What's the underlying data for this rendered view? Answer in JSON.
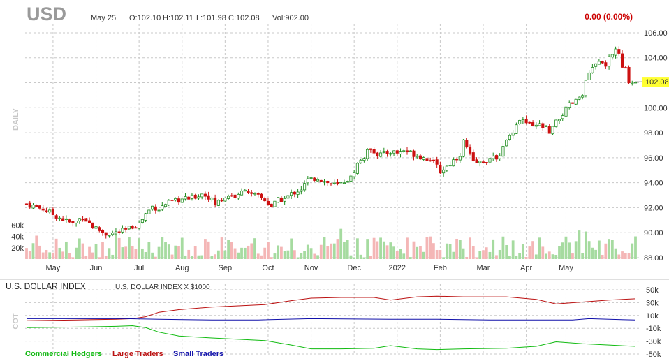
{
  "header": {
    "symbol": "USD",
    "date": "May 25",
    "open": "O:102.10",
    "high": "H:102.11",
    "low": "L:101.98",
    "close": "C:102.08",
    "volume": "Vol:902.00",
    "change": "0.00 (0.00%)",
    "last_price_label": "102.08",
    "timeframe_label": "DAILY"
  },
  "colors": {
    "up": "#1e8c1e",
    "down": "#cc1111",
    "vol_up": "#a6dba0",
    "vol_down": "#f4b6b6",
    "grid": "#c8c8c8",
    "price_highlight": "#ffff33",
    "change_text": "#cc0000",
    "commercial": "#11bb11",
    "large": "#bb1111",
    "small": "#1111aa"
  },
  "chart_data": [
    {
      "type": "candlestick",
      "title": "USD",
      "ylim": [
        88,
        106.5
      ],
      "y_ticks": [
        "106.00",
        "104.00",
        "102.00",
        "100.00",
        "98.00",
        "96.00",
        "94.00",
        "92.00",
        "90.00",
        "88.00"
      ],
      "x_tick_labels": [
        "May",
        "Jun",
        "Jul",
        "Aug",
        "Sep",
        "Oct",
        "Nov",
        "Dec",
        "2022",
        "Feb",
        "Mar",
        "Apr",
        "May"
      ],
      "volume_ticks": [
        "60k",
        "40k",
        "20k"
      ],
      "last_price": 102.08,
      "close_path": [
        [
          0,
          92.3
        ],
        [
          5,
          91.9
        ],
        [
          10,
          91.2
        ],
        [
          14,
          90.7
        ],
        [
          17,
          91.3
        ],
        [
          20,
          90.5
        ],
        [
          24,
          89.9
        ],
        [
          27,
          90.0
        ],
        [
          30,
          90.2
        ],
        [
          32,
          90.5
        ],
        [
          34,
          90.7
        ],
        [
          36,
          91.5
        ],
        [
          38,
          92.1
        ],
        [
          40,
          91.9
        ],
        [
          42,
          92.3
        ],
        [
          46,
          92.6
        ],
        [
          50,
          92.8
        ],
        [
          53,
          93.1
        ],
        [
          55,
          92.9
        ],
        [
          57,
          92.3
        ],
        [
          59,
          92.7
        ],
        [
          61,
          93.0
        ],
        [
          64,
          92.9
        ],
        [
          66,
          93.6
        ],
        [
          68,
          93.0
        ],
        [
          70,
          92.9
        ],
        [
          72,
          92.6
        ],
        [
          74,
          92.1
        ],
        [
          76,
          92.6
        ],
        [
          78,
          92.7
        ],
        [
          80,
          93.1
        ],
        [
          83,
          93.5
        ],
        [
          85,
          94.2
        ],
        [
          88,
          94.4
        ],
        [
          90,
          94.1
        ],
        [
          92,
          93.9
        ],
        [
          94,
          93.8
        ],
        [
          96,
          94.1
        ],
        [
          98,
          94.4
        ],
        [
          100,
          95.5
        ],
        [
          102,
          96.1
        ],
        [
          104,
          96.8
        ],
        [
          106,
          96.3
        ],
        [
          108,
          96.3
        ],
        [
          110,
          96.5
        ],
        [
          112,
          96.4
        ],
        [
          114,
          96.6
        ],
        [
          116,
          96.4
        ],
        [
          118,
          96.2
        ],
        [
          120,
          96.0
        ],
        [
          122,
          95.9
        ],
        [
          124,
          95.3
        ],
        [
          125,
          94.9
        ],
        [
          127,
          95.3
        ],
        [
          129,
          95.8
        ],
        [
          131,
          96.3
        ],
        [
          132,
          97.3
        ],
        [
          133,
          96.8
        ],
        [
          135,
          95.6
        ],
        [
          137,
          95.6
        ],
        [
          139,
          95.8
        ],
        [
          141,
          95.9
        ],
        [
          143,
          96.3
        ],
        [
          145,
          97.3
        ],
        [
          147,
          98.2
        ],
        [
          149,
          99.1
        ],
        [
          151,
          98.8
        ],
        [
          153,
          98.4
        ],
        [
          155,
          98.6
        ],
        [
          157,
          98.3
        ],
        [
          158,
          97.9
        ],
        [
          160,
          98.8
        ],
        [
          162,
          99.5
        ],
        [
          164,
          100.2
        ],
        [
          166,
          100.5
        ],
        [
          168,
          101.2
        ],
        [
          170,
          102.8
        ],
        [
          172,
          103.4
        ],
        [
          174,
          103.8
        ],
        [
          175,
          103.1
        ],
        [
          176,
          103.9
        ],
        [
          177,
          104.2
        ],
        [
          178,
          104.8
        ],
        [
          179,
          104.2
        ],
        [
          180,
          103.2
        ],
        [
          181,
          103.0
        ],
        [
          182,
          102.2
        ],
        [
          183,
          102.0
        ],
        [
          184,
          102.1
        ]
      ],
      "volume_range": [
        3000,
        68000
      ]
    },
    {
      "type": "line",
      "title": "U.S. DOLLAR INDEX",
      "subtitle": "U.S. DOLLAR INDEX X $1000",
      "ylabel": "COT",
      "ylim": [
        -50,
        50
      ],
      "y_ticks": [
        "50k",
        "30k",
        "10k",
        "-10k",
        "-30k",
        "-50k"
      ],
      "series": [
        {
          "name": "Commercial Hedgers",
          "color": "#11bb11",
          "points": [
            [
              0,
              -9
            ],
            [
              15,
              -8
            ],
            [
              27,
              -7
            ],
            [
              32,
              -6
            ],
            [
              36,
              -9
            ],
            [
              40,
              -16
            ],
            [
              46,
              -22
            ],
            [
              56,
              -25
            ],
            [
              72,
              -29
            ],
            [
              80,
              -36
            ],
            [
              86,
              -42
            ],
            [
              95,
              -42
            ],
            [
              105,
              -41
            ],
            [
              110,
              -37
            ],
            [
              118,
              -42
            ],
            [
              124,
              -43
            ],
            [
              132,
              -42
            ],
            [
              145,
              -41
            ],
            [
              154,
              -38
            ],
            [
              160,
              -31
            ],
            [
              168,
              -34
            ],
            [
              176,
              -36
            ],
            [
              184,
              -38
            ]
          ]
        },
        {
          "name": "Large Traders",
          "color": "#bb1111",
          "points": [
            [
              0,
              2
            ],
            [
              15,
              3
            ],
            [
              27,
              4
            ],
            [
              32,
              5
            ],
            [
              36,
              8
            ],
            [
              40,
              15
            ],
            [
              46,
              19
            ],
            [
              56,
              23
            ],
            [
              72,
              27
            ],
            [
              80,
              33
            ],
            [
              86,
              37
            ],
            [
              95,
              38
            ],
            [
              105,
              38
            ],
            [
              110,
              34
            ],
            [
              118,
              39
            ],
            [
              124,
              40
            ],
            [
              132,
              39
            ],
            [
              145,
              39
            ],
            [
              154,
              35
            ],
            [
              160,
              28
            ],
            [
              168,
              31
            ],
            [
              176,
              34
            ],
            [
              184,
              36
            ]
          ]
        },
        {
          "name": "Small Traders",
          "color": "#1111aa",
          "points": [
            [
              0,
              5
            ],
            [
              30,
              5
            ],
            [
              40,
              4
            ],
            [
              56,
              3
            ],
            [
              70,
              3
            ],
            [
              86,
              5
            ],
            [
              110,
              4
            ],
            [
              124,
              4
            ],
            [
              140,
              3
            ],
            [
              155,
              3
            ],
            [
              165,
              3
            ],
            [
              170,
              5
            ],
            [
              176,
              4
            ],
            [
              184,
              3
            ]
          ]
        }
      ]
    }
  ]
}
